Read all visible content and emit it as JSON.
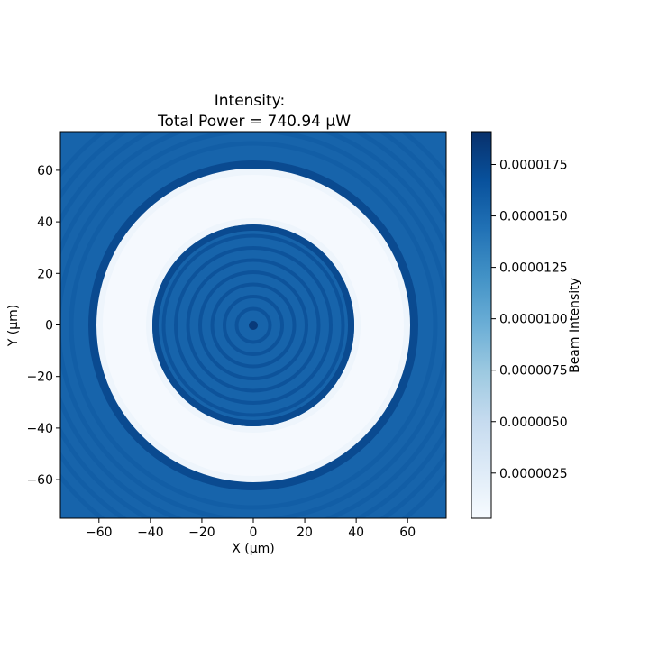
{
  "chart_data": {
    "type": "heatmap",
    "title_line1": "Intensity:",
    "title_line2": "Total Power = 740.94 μW",
    "xlabel": "X (μm)",
    "ylabel": "Y (μm)",
    "xlim": [
      -75,
      75
    ],
    "ylim": [
      -75,
      75
    ],
    "xticks": [
      -60,
      -40,
      -20,
      0,
      20,
      40,
      60
    ],
    "yticks": [
      -60,
      -40,
      -20,
      0,
      20,
      40,
      60
    ],
    "xtick_labels": [
      "−60",
      "−40",
      "−20",
      "0",
      "20",
      "40",
      "60"
    ],
    "ytick_labels": [
      "−60",
      "−40",
      "−20",
      "0",
      "20",
      "40",
      "60"
    ],
    "colormap": "Blues",
    "colorbar": {
      "label": "Beam Intensity",
      "range": [
        3e-07,
        1.91e-05
      ],
      "ticks": [
        2.5e-06,
        5e-06,
        7.5e-06,
        1e-05,
        1.25e-05,
        1.5e-05,
        1.75e-05
      ],
      "tick_labels": [
        "0.0000025",
        "0.0000050",
        "0.0000075",
        "0.0000100",
        "0.0000125",
        "0.0000150",
        "0.0000175"
      ]
    },
    "annulus": {
      "inner_radius": 38,
      "outer_radius": 61
    }
  }
}
